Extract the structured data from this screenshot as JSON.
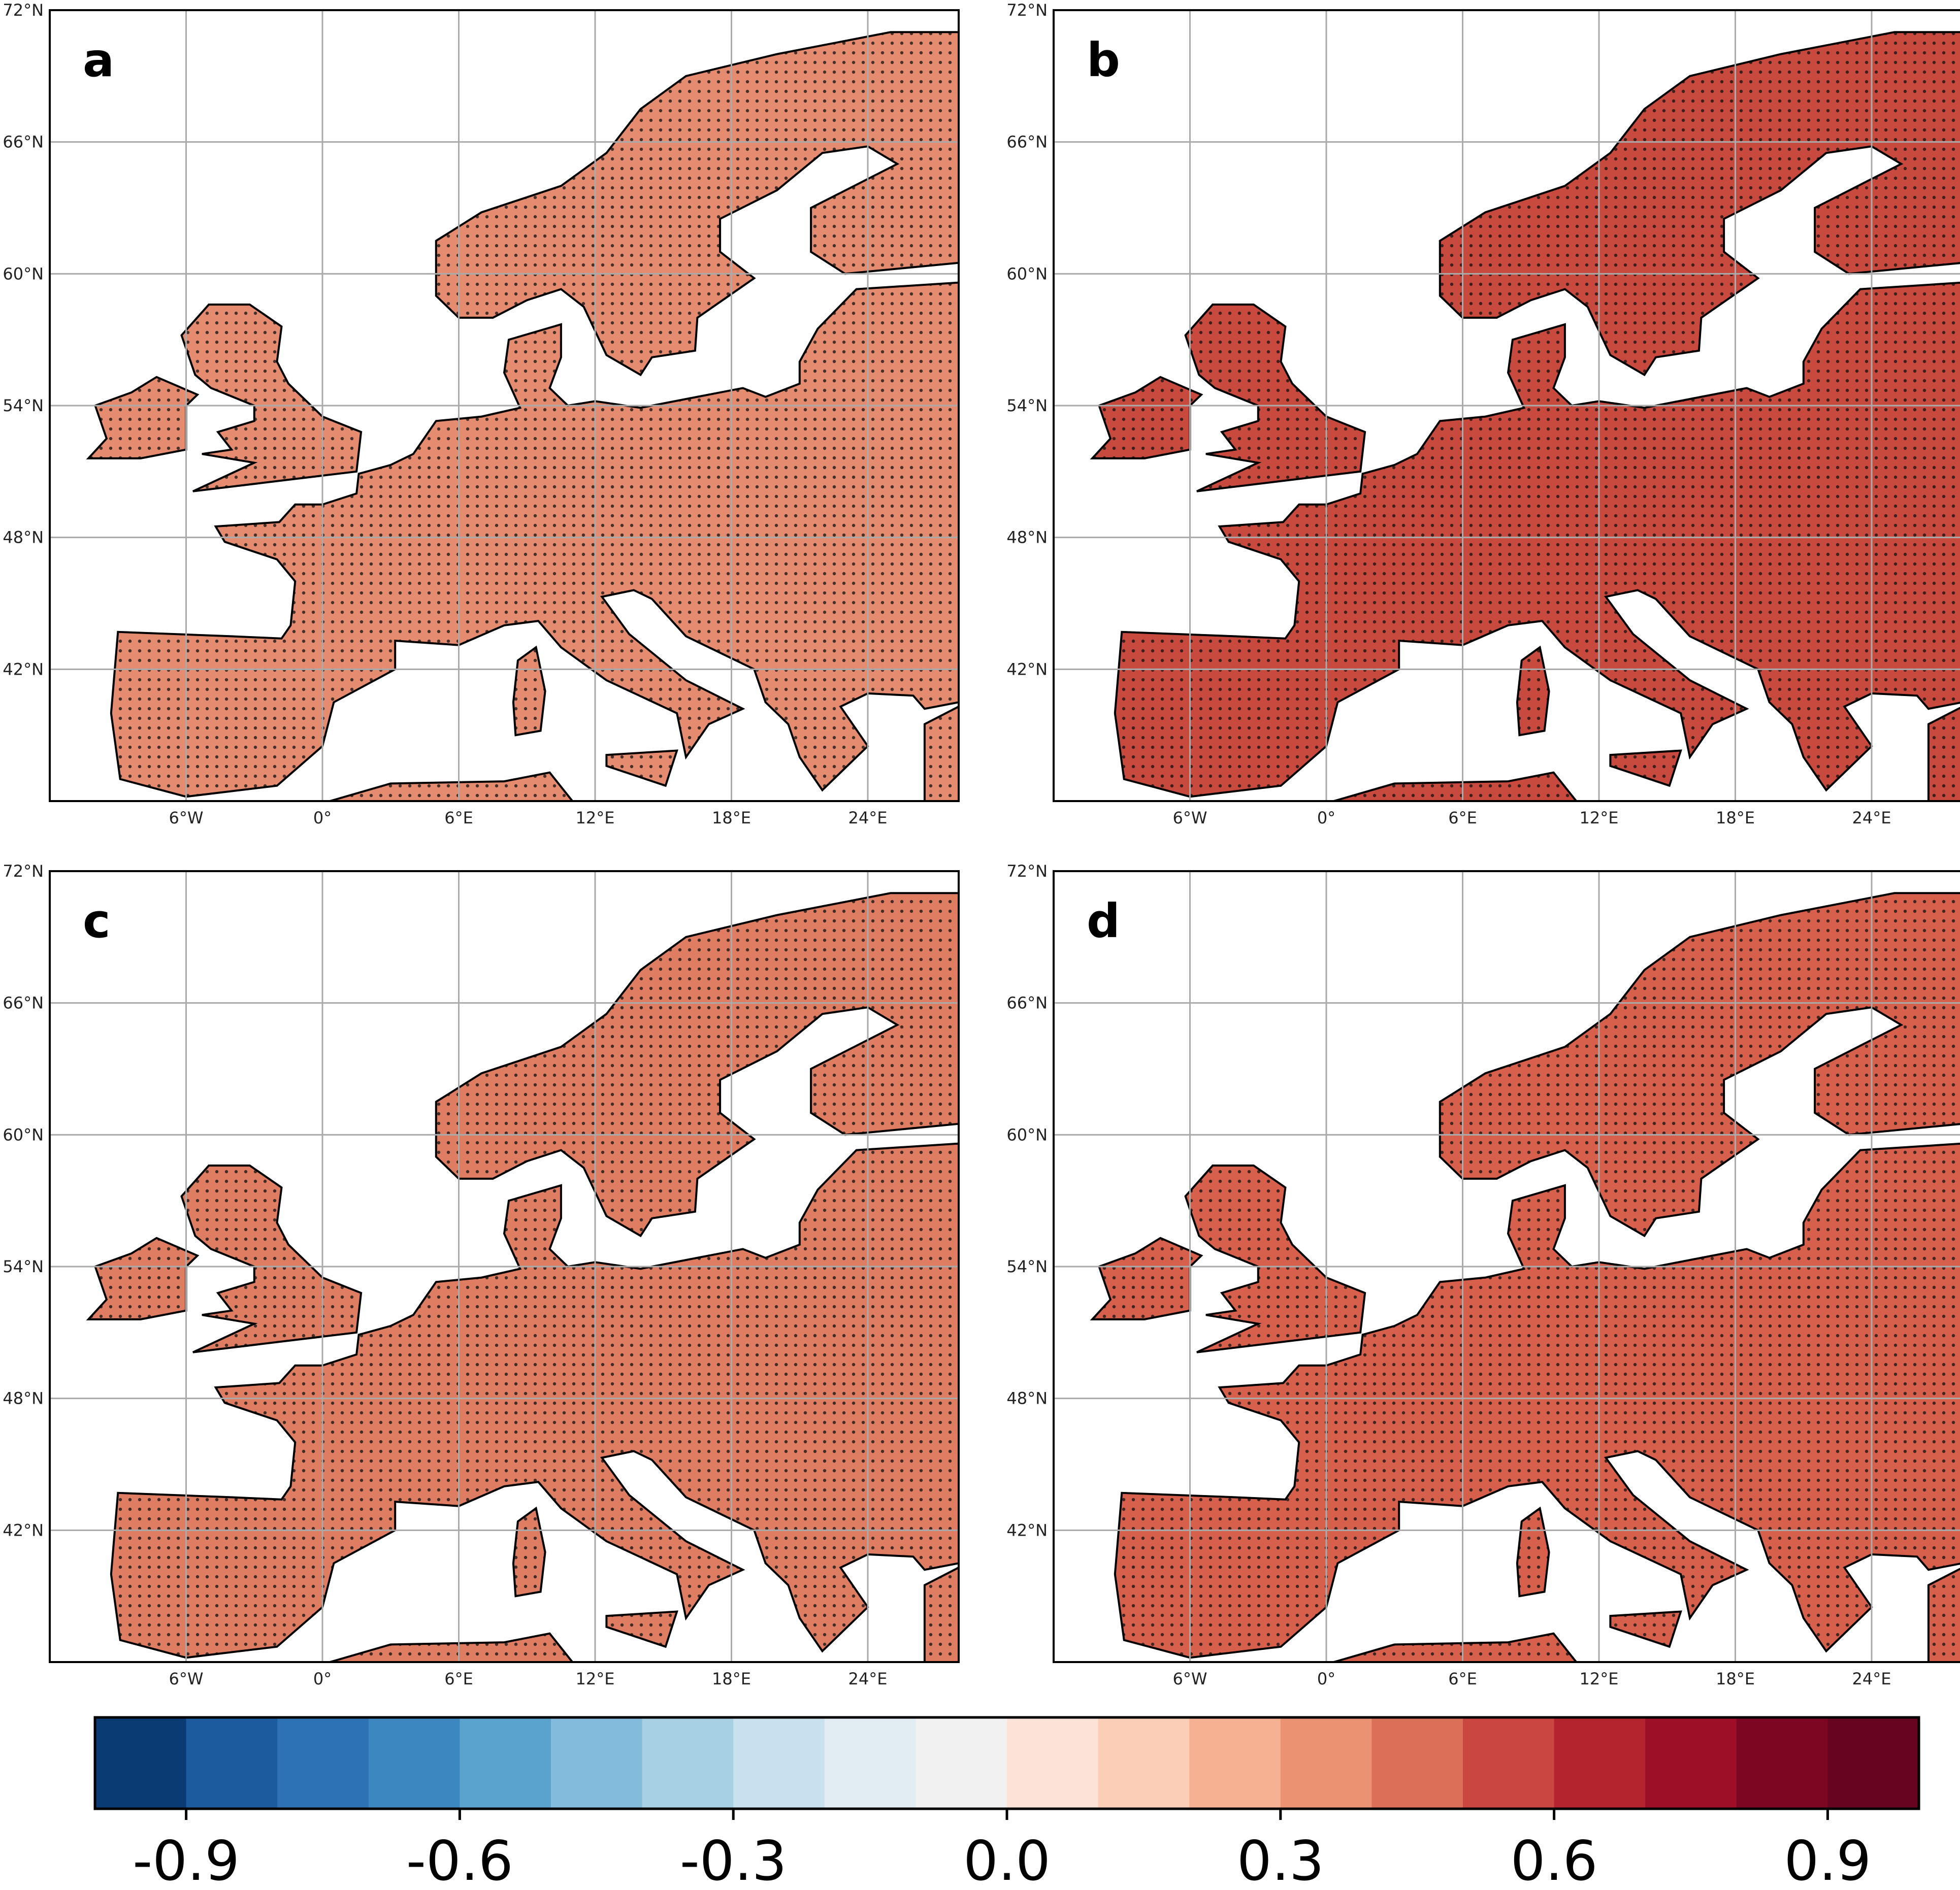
{
  "panels": [
    {
      "label": "a"
    },
    {
      "label": "b"
    },
    {
      "label": "c"
    },
    {
      "label": "d"
    }
  ],
  "lon_range": [
    -12,
    28
  ],
  "lat_range": [
    36,
    72
  ],
  "lat_ticks": [
    {
      "value": 72,
      "label": "72°N"
    },
    {
      "value": 66,
      "label": "66°N"
    },
    {
      "value": 60,
      "label": "60°N"
    },
    {
      "value": 54,
      "label": "54°N"
    },
    {
      "value": 48,
      "label": "48°N"
    },
    {
      "value": 42,
      "label": "42°N"
    }
  ],
  "lon_ticks": [
    {
      "value": -6,
      "label": "6°W"
    },
    {
      "value": 0,
      "label": "0°"
    },
    {
      "value": 6,
      "label": "6°E"
    },
    {
      "value": 12,
      "label": "12°E"
    },
    {
      "value": 18,
      "label": "18°E"
    },
    {
      "value": 24,
      "label": "24°E"
    }
  ],
  "colorbar": {
    "range": [
      -1,
      1
    ],
    "colors": [
      "#0b3b73",
      "#1b5b9e",
      "#2c72b5",
      "#3d87c0",
      "#5ba3cf",
      "#82bbdb",
      "#a8d0e4",
      "#c9e1ee",
      "#e2edf3",
      "#f1f1f1",
      "#fbe4d7",
      "#fbcfb7",
      "#f6b193",
      "#eb9272",
      "#dc6f57",
      "#c94740",
      "#b3242f",
      "#9d0f27",
      "#7d0722",
      "#670420"
    ],
    "ticks": [
      {
        "value": -0.9,
        "label": "-0.9"
      },
      {
        "value": -0.6,
        "label": "-0.6"
      },
      {
        "value": -0.3,
        "label": "-0.3"
      },
      {
        "value": 0,
        "label": "0.0"
      },
      {
        "value": 0.3,
        "label": "0.3"
      },
      {
        "value": 0.6,
        "label": "0.6"
      },
      {
        "value": 0.9,
        "label": "0.9"
      }
    ]
  }
}
